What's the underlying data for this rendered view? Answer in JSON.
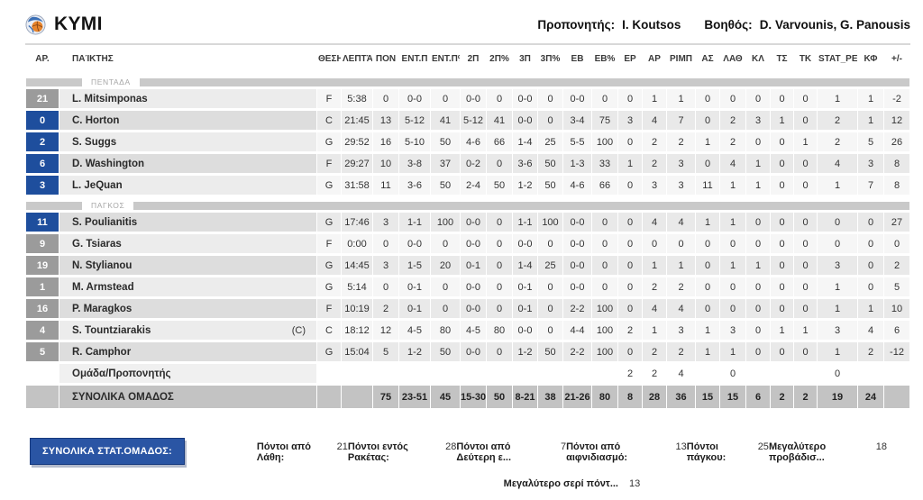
{
  "header": {
    "team_name": "KYMI",
    "coach_label": "Προπονητής:",
    "coach_name": "I. Koutsos",
    "assistant_label": "Βοηθός:",
    "assistant_names": "D. Varvounis, G. Panousis"
  },
  "colors": {
    "badge_blue": "#1e4e9d",
    "badge_gray": "#9b9b9b",
    "band_gray": "#c9c9c9",
    "totals_bg": "#c3c3c3",
    "button_blue": "#2a55a4"
  },
  "table": {
    "captain_mark": "(C)",
    "columns": [
      {
        "label": "ΑΡ."
      },
      {
        "label": "ΠΑΊΚΤΗΣ"
      },
      {
        "label": "ΘΕΣΗ"
      },
      {
        "label": "ΛΕΠΤΆ"
      },
      {
        "label": "ΠΟΝ"
      },
      {
        "label": "ΕΝΤ.Π"
      },
      {
        "label": "ΕΝΤ.Π%"
      },
      {
        "label": "2Π"
      },
      {
        "label": "2Π%"
      },
      {
        "label": "3Π"
      },
      {
        "label": "3Π%"
      },
      {
        "label": "ΕΒ"
      },
      {
        "label": "ΕΒ%"
      },
      {
        "label": "ΕΡ"
      },
      {
        "label": "ΑΡ"
      },
      {
        "label": "ΡΙΜΠ"
      },
      {
        "label": "ΑΣ"
      },
      {
        "label": "ΛΑΘ"
      },
      {
        "label": "ΚΛ"
      },
      {
        "label": "ΤΣ"
      },
      {
        "label": "ΤΚ"
      },
      {
        "label": "STAT_PERS..."
      },
      {
        "label": "ΚΦ"
      },
      {
        "label": "+/-"
      }
    ],
    "sections": [
      {
        "label": "ΠΕΝΤΑΔΑ",
        "players": [
          {
            "number": "21",
            "badge": "gray",
            "name": "L. Mitsimponas",
            "captain": false,
            "stats": [
              "F",
              "5:38",
              "0",
              "0-0",
              "0",
              "0-0",
              "0",
              "0-0",
              "0",
              "0-0",
              "0",
              "0",
              "1",
              "1",
              "0",
              "0",
              "0",
              "0",
              "0",
              "1",
              "1",
              "-2"
            ]
          },
          {
            "number": "0",
            "badge": "blue",
            "name": "C. Horton",
            "captain": false,
            "stats": [
              "C",
              "21:45",
              "13",
              "5-12",
              "41",
              "5-12",
              "41",
              "0-0",
              "0",
              "3-4",
              "75",
              "3",
              "4",
              "7",
              "0",
              "2",
              "3",
              "1",
              "0",
              "2",
              "1",
              "12"
            ]
          },
          {
            "number": "2",
            "badge": "blue",
            "name": "S. Suggs",
            "captain": false,
            "stats": [
              "G",
              "29:52",
              "16",
              "5-10",
              "50",
              "4-6",
              "66",
              "1-4",
              "25",
              "5-5",
              "100",
              "0",
              "2",
              "2",
              "1",
              "2",
              "0",
              "0",
              "1",
              "2",
              "5",
              "26"
            ]
          },
          {
            "number": "6",
            "badge": "blue",
            "name": "D. Washington",
            "captain": false,
            "stats": [
              "F",
              "29:27",
              "10",
              "3-8",
              "37",
              "0-2",
              "0",
              "3-6",
              "50",
              "1-3",
              "33",
              "1",
              "2",
              "3",
              "0",
              "4",
              "1",
              "0",
              "0",
              "4",
              "3",
              "8"
            ]
          },
          {
            "number": "3",
            "badge": "blue",
            "name": "L. JeQuan",
            "captain": false,
            "stats": [
              "G",
              "31:58",
              "11",
              "3-6",
              "50",
              "2-4",
              "50",
              "1-2",
              "50",
              "4-6",
              "66",
              "0",
              "3",
              "3",
              "11",
              "1",
              "1",
              "0",
              "0",
              "1",
              "7",
              "8"
            ]
          }
        ]
      },
      {
        "label": "ΠΑΓΚΟΣ",
        "players": [
          {
            "number": "11",
            "badge": "blue",
            "name": "S. Poulianitis",
            "captain": false,
            "stats": [
              "G",
              "17:46",
              "3",
              "1-1",
              "100",
              "0-0",
              "0",
              "1-1",
              "100",
              "0-0",
              "0",
              "0",
              "4",
              "4",
              "1",
              "1",
              "0",
              "0",
              "0",
              "0",
              "0",
              "27"
            ]
          },
          {
            "number": "9",
            "badge": "gray",
            "name": "G. Tsiaras",
            "captain": false,
            "stats": [
              "F",
              "0:00",
              "0",
              "0-0",
              "0",
              "0-0",
              "0",
              "0-0",
              "0",
              "0-0",
              "0",
              "0",
              "0",
              "0",
              "0",
              "0",
              "0",
              "0",
              "0",
              "0",
              "0",
              "0"
            ]
          },
          {
            "number": "19",
            "badge": "gray",
            "name": "N. Stylianou",
            "captain": false,
            "stats": [
              "G",
              "14:45",
              "3",
              "1-5",
              "20",
              "0-1",
              "0",
              "1-4",
              "25",
              "0-0",
              "0",
              "0",
              "1",
              "1",
              "0",
              "1",
              "1",
              "0",
              "0",
              "3",
              "0",
              "2"
            ]
          },
          {
            "number": "1",
            "badge": "gray",
            "name": "M. Armstead",
            "captain": false,
            "stats": [
              "G",
              "5:14",
              "0",
              "0-1",
              "0",
              "0-0",
              "0",
              "0-1",
              "0",
              "0-0",
              "0",
              "0",
              "2",
              "2",
              "0",
              "0",
              "0",
              "0",
              "0",
              "1",
              "0",
              "5"
            ]
          },
          {
            "number": "16",
            "badge": "gray",
            "name": "P. Maragkos",
            "captain": false,
            "stats": [
              "F",
              "10:19",
              "2",
              "0-1",
              "0",
              "0-0",
              "0",
              "0-1",
              "0",
              "2-2",
              "100",
              "0",
              "4",
              "4",
              "0",
              "0",
              "0",
              "0",
              "0",
              "1",
              "1",
              "10"
            ]
          },
          {
            "number": "4",
            "badge": "gray",
            "name": "S. Tountziarakis",
            "captain": true,
            "stats": [
              "C",
              "18:12",
              "12",
              "4-5",
              "80",
              "4-5",
              "80",
              "0-0",
              "0",
              "4-4",
              "100",
              "2",
              "1",
              "3",
              "1",
              "3",
              "0",
              "1",
              "1",
              "3",
              "4",
              "6"
            ]
          },
          {
            "number": "5",
            "badge": "gray",
            "name": "R. Camphor",
            "captain": false,
            "stats": [
              "G",
              "15:04",
              "5",
              "1-2",
              "50",
              "0-0",
              "0",
              "1-2",
              "50",
              "2-2",
              "100",
              "0",
              "2",
              "2",
              "1",
              "1",
              "0",
              "0",
              "0",
              "1",
              "2",
              "-12"
            ]
          }
        ]
      }
    ],
    "team_row": {
      "label": "Ομάδα/Προπονητής",
      "stats": [
        "",
        "",
        "",
        "",
        "",
        "",
        "",
        "",
        "",
        "",
        "",
        "2",
        "2",
        "4",
        "",
        "0",
        "",
        "",
        "",
        "0",
        "",
        ""
      ]
    },
    "totals_row": {
      "label": "ΣΥΝΟΛΙΚΑ ΟΜΑΔΟΣ",
      "stats": [
        "",
        "",
        "75",
        "23-51",
        "45",
        "15-30",
        "50",
        "8-21",
        "38",
        "21-26",
        "80",
        "8",
        "28",
        "36",
        "15",
        "15",
        "6",
        "2",
        "2",
        "19",
        "24",
        ""
      ]
    }
  },
  "footer": {
    "button_label": "ΣΥΝΟΛΙΚΑ ΣΤΑΤ.ΟΜΑΔΟΣ:",
    "stats": [
      {
        "label": "Πόντοι από Λάθη:",
        "value": "21"
      },
      {
        "label": "Πόντοι εντός Ρακέτας:",
        "value": "28"
      },
      {
        "label": "Πόντοι από Δεύτερη ε...",
        "value": "7"
      },
      {
        "label": "Πόντοι από αιφνιδιασμό:",
        "value": "13"
      },
      {
        "label": "Πόντοι πάγκου:",
        "value": "25"
      },
      {
        "label": "Μεγαλύτερο προβάδισ...",
        "value": "18"
      }
    ],
    "stats_row2": [
      {
        "label": "Μεγαλύτερο σερί πόντ...",
        "value": "13"
      }
    ]
  }
}
